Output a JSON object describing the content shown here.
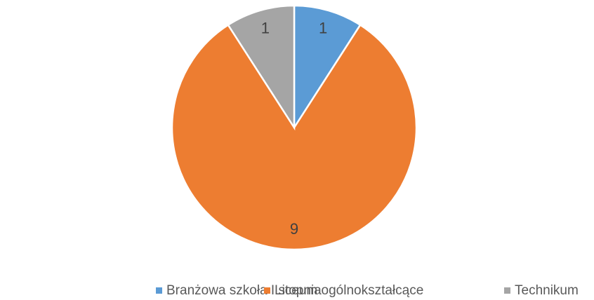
{
  "chart_data": {
    "type": "pie",
    "categories": [
      "Branżowa szkoła I stopnia",
      "Liceum ogólnokształcące",
      "Technikum"
    ],
    "values": [
      1,
      9,
      1
    ],
    "colors": [
      "#5b9bd5",
      "#ed7d31",
      "#a5a5a5"
    ],
    "legend": "bottom"
  }
}
